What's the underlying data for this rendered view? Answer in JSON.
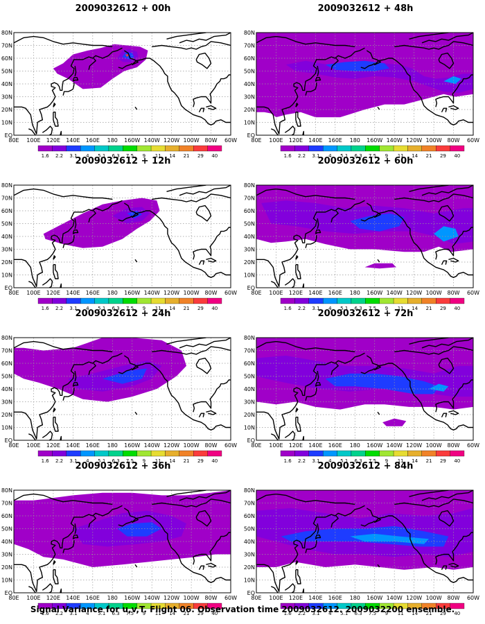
{
  "figure": {
    "caption": "Signal Variance for u,v,T. Flight 06. Observation time 2009032612. 2009032200 ensemble."
  },
  "map": {
    "lat_labels": [
      "80N",
      "70N",
      "60N",
      "50N",
      "40N",
      "30N",
      "20N",
      "10N",
      "EQ"
    ],
    "lon_labels": [
      "80E",
      "100E",
      "120E",
      "140E",
      "160E",
      "180",
      "160W",
      "140W",
      "120W",
      "100W",
      "80W",
      "60W"
    ]
  },
  "colorbar": {
    "levels": [
      "1.6",
      "2.2",
      "3.1",
      "4",
      "5.1",
      "6.3",
      "7.5",
      "9",
      "11",
      "14",
      "21",
      "29",
      "40"
    ],
    "colors": [
      "#a000c8",
      "#8200dc",
      "#1e3cff",
      "#0096ff",
      "#00c8c8",
      "#00d28c",
      "#00dc00",
      "#a0e632",
      "#e6dc32",
      "#e6af2d",
      "#f08228",
      "#fa3c3c",
      "#f00082"
    ]
  },
  "panels": [
    {
      "title": "2009032612 + 00h"
    },
    {
      "title": "2009032612 + 48h"
    },
    {
      "title": "2009032612 + 12h"
    },
    {
      "title": "2009032612 + 60h"
    },
    {
      "title": "2009032612 + 24h"
    },
    {
      "title": "2009032612 + 72h"
    },
    {
      "title": "2009032612 + 36h"
    },
    {
      "title": "2009032612 + 84h"
    }
  ]
}
